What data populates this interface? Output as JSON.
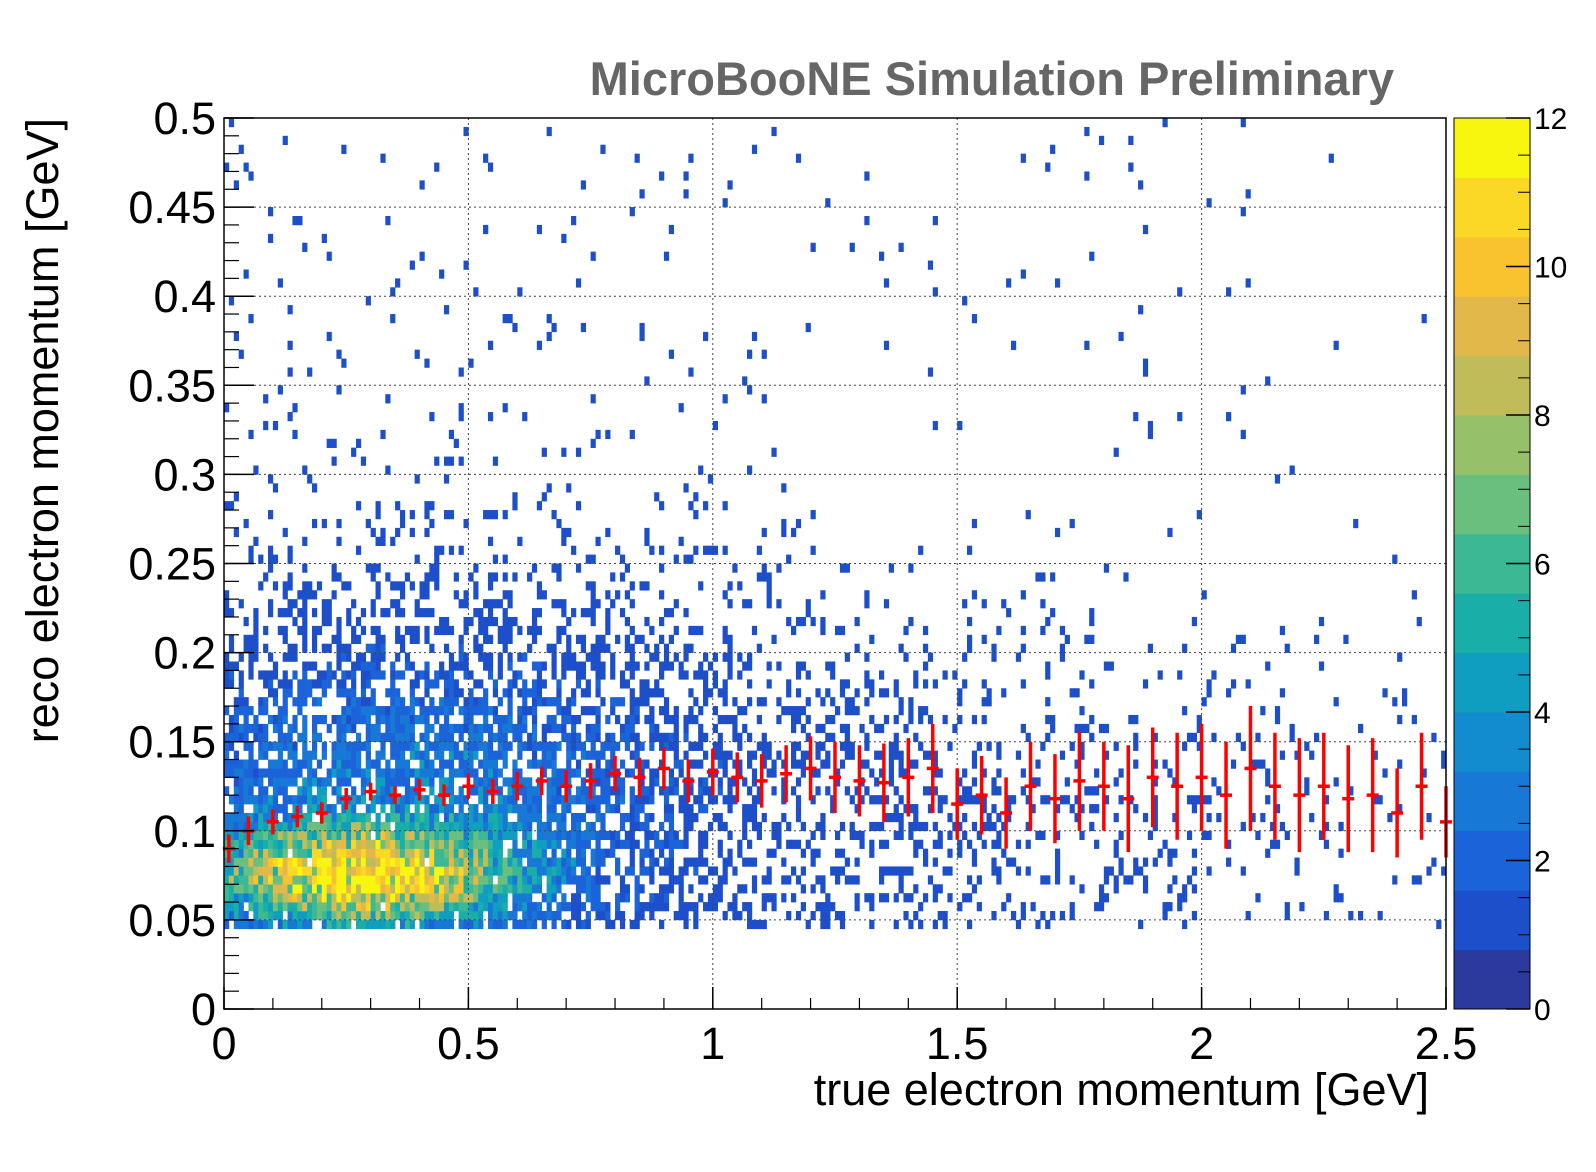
{
  "chart_data": {
    "type": "heatmap",
    "title": "MicroBooNE Simulation Preliminary",
    "xlabel": "true electron momentum [GeV]",
    "ylabel": "reco electron momentum [GeV]",
    "xlim": [
      0,
      2.5
    ],
    "ylim": [
      0,
      0.5
    ],
    "zlim": [
      0,
      12
    ],
    "x_ticks": [
      "0",
      "0.5",
      "1",
      "1.5",
      "2",
      "2.5"
    ],
    "y_ticks": [
      "0",
      "0.05",
      "0.1",
      "0.15",
      "0.2",
      "0.25",
      "0.3",
      "0.35",
      "0.4",
      "0.45",
      "0.5"
    ],
    "z_ticks": [
      "0",
      "2",
      "4",
      "6",
      "8",
      "10",
      "12"
    ],
    "grid": true,
    "colormap": [
      "#2c3a9e",
      "#1c4fc9",
      "#1a63d8",
      "#1778d6",
      "#128bcf",
      "#0f9ebf",
      "#19aea8",
      "#3cb895",
      "#6bbf7e",
      "#97c06a",
      "#c0bc5a",
      "#e2b84a",
      "#f9c330",
      "#fbd826",
      "#f8f60e"
    ],
    "density_summary": "2D histogram of events concentrated at true momentum 0-0.7 GeV and reco momentum 0.045-0.25 GeV, with sparse entries elsewhere; peak bin content ~12 near (0.15-0.4, 0.06-0.09).",
    "profile": {
      "name": "mean reco momentum per true-momentum bin",
      "color": "#ff0000",
      "x": [
        0.01,
        0.05,
        0.1,
        0.15,
        0.2,
        0.25,
        0.3,
        0.35,
        0.4,
        0.45,
        0.5,
        0.55,
        0.6,
        0.65,
        0.7,
        0.75,
        0.8,
        0.85,
        0.9,
        0.95,
        1.0,
        1.05,
        1.1,
        1.15,
        1.2,
        1.25,
        1.3,
        1.35,
        1.4,
        1.45,
        1.5,
        1.55,
        1.6,
        1.65,
        1.7,
        1.75,
        1.8,
        1.85,
        1.9,
        1.95,
        2.0,
        2.05,
        2.1,
        2.15,
        2.2,
        2.25,
        2.3,
        2.35,
        2.4,
        2.45,
        2.5
      ],
      "y": [
        0.09,
        0.1,
        0.105,
        0.108,
        0.11,
        0.118,
        0.122,
        0.12,
        0.123,
        0.12,
        0.125,
        0.122,
        0.125,
        0.128,
        0.125,
        0.128,
        0.132,
        0.13,
        0.135,
        0.128,
        0.133,
        0.13,
        0.128,
        0.132,
        0.135,
        0.13,
        0.128,
        0.127,
        0.13,
        0.135,
        0.115,
        0.12,
        0.11,
        0.125,
        0.118,
        0.128,
        0.125,
        0.118,
        0.13,
        0.125,
        0.13,
        0.12,
        0.135,
        0.125,
        0.12,
        0.125,
        0.118,
        0.12,
        0.11,
        0.125,
        0.105
      ],
      "err": [
        0.008,
        0.008,
        0.007,
        0.006,
        0.006,
        0.006,
        0.005,
        0.005,
        0.006,
        0.006,
        0.007,
        0.007,
        0.008,
        0.008,
        0.009,
        0.01,
        0.01,
        0.011,
        0.012,
        0.012,
        0.013,
        0.014,
        0.015,
        0.016,
        0.018,
        0.02,
        0.02,
        0.022,
        0.022,
        0.025,
        0.02,
        0.022,
        0.02,
        0.025,
        0.025,
        0.028,
        0.025,
        0.03,
        0.028,
        0.03,
        0.03,
        0.03,
        0.035,
        0.03,
        0.032,
        0.03,
        0.03,
        0.032,
        0.025,
        0.03,
        0.02
      ]
    }
  }
}
